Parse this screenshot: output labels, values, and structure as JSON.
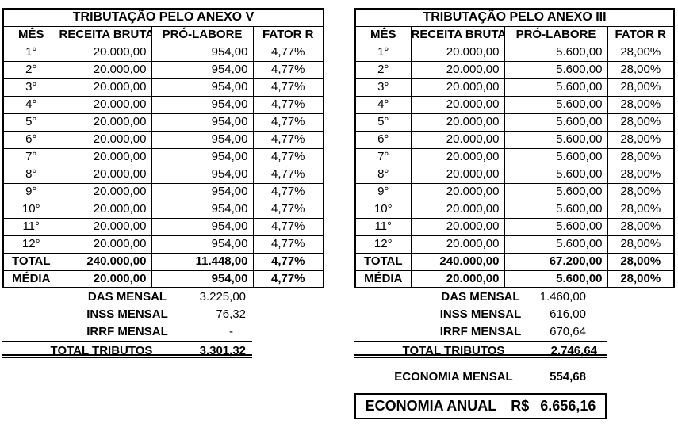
{
  "page": {
    "background": "#ffffff",
    "text_color": "#000000",
    "border_color": "#000000"
  },
  "tables": [
    {
      "title": "TRIBUTAÇÃO PELO ANEXO V",
      "columns": [
        "MÊS",
        "RECEITA BRUTA",
        "PRÓ-LABORE",
        "FATOR R"
      ],
      "rows": [
        [
          "1°",
          "20.000,00",
          "954,00",
          "4,77%"
        ],
        [
          "2°",
          "20.000,00",
          "954,00",
          "4,77%"
        ],
        [
          "3°",
          "20.000,00",
          "954,00",
          "4,77%"
        ],
        [
          "4°",
          "20.000,00",
          "954,00",
          "4,77%"
        ],
        [
          "5°",
          "20.000,00",
          "954,00",
          "4,77%"
        ],
        [
          "6°",
          "20.000,00",
          "954,00",
          "4,77%"
        ],
        [
          "7°",
          "20.000,00",
          "954,00",
          "4,77%"
        ],
        [
          "8°",
          "20.000,00",
          "954,00",
          "4,77%"
        ],
        [
          "9°",
          "20.000,00",
          "954,00",
          "4,77%"
        ],
        [
          "10°",
          "20.000,00",
          "954,00",
          "4,77%"
        ],
        [
          "11°",
          "20.000,00",
          "954,00",
          "4,77%"
        ],
        [
          "12°",
          "20.000,00",
          "954,00",
          "4,77%"
        ]
      ],
      "total_row": [
        "TOTAL",
        "240.000,00",
        "11.448,00",
        "4,77%"
      ],
      "media_row": [
        "MÉDIA",
        "20.000,00",
        "954,00",
        "4,77%"
      ],
      "summary": [
        {
          "label": "DAS MENSAL",
          "value": "3.225,00"
        },
        {
          "label": "INSS MENSAL",
          "value": "76,32"
        },
        {
          "label": "IRRF MENSAL",
          "value": "-"
        }
      ],
      "total_tributos": {
        "label": "TOTAL TRIBUTOS",
        "value": "3.301,32"
      }
    },
    {
      "title": "TRIBUTAÇÃO PELO ANEXO III",
      "columns": [
        "MÊS",
        "RECEITA BRUTA",
        "PRÓ-LABORE",
        "FATOR R"
      ],
      "rows": [
        [
          "1°",
          "20.000,00",
          "5.600,00",
          "28,00%"
        ],
        [
          "2°",
          "20.000,00",
          "5.600,00",
          "28,00%"
        ],
        [
          "3°",
          "20.000,00",
          "5.600,00",
          "28,00%"
        ],
        [
          "4°",
          "20.000,00",
          "5.600,00",
          "28,00%"
        ],
        [
          "5°",
          "20.000,00",
          "5.600,00",
          "28,00%"
        ],
        [
          "6°",
          "20.000,00",
          "5.600,00",
          "28,00%"
        ],
        [
          "7°",
          "20.000,00",
          "5.600,00",
          "28,00%"
        ],
        [
          "8°",
          "20.000,00",
          "5.600,00",
          "28,00%"
        ],
        [
          "9°",
          "20.000,00",
          "5.600,00",
          "28,00%"
        ],
        [
          "10°",
          "20.000,00",
          "5.600,00",
          "28,00%"
        ],
        [
          "11°",
          "20.000,00",
          "5.600,00",
          "28,00%"
        ],
        [
          "12°",
          "20.000,00",
          "5.600,00",
          "28,00%"
        ]
      ],
      "total_row": [
        "TOTAL",
        "240.000,00",
        "67.200,00",
        "28,00%"
      ],
      "media_row": [
        "MÉDIA",
        "20.000,00",
        "5.600,00",
        "28,00%"
      ],
      "summary": [
        {
          "label": "DAS MENSAL",
          "value": "1.460,00"
        },
        {
          "label": "INSS MENSAL",
          "value": "616,00"
        },
        {
          "label": "IRRF MENSAL",
          "value": "670,64"
        }
      ],
      "total_tributos": {
        "label": "TOTAL TRIBUTOS",
        "value": "2.746,64"
      }
    }
  ],
  "economia_mensal": {
    "label": "ECONOMIA MENSAL",
    "value": "554,68"
  },
  "economia_anual": {
    "label": "ECONOMIA ANUAL",
    "currency": "R$",
    "value": "6.656,16"
  }
}
